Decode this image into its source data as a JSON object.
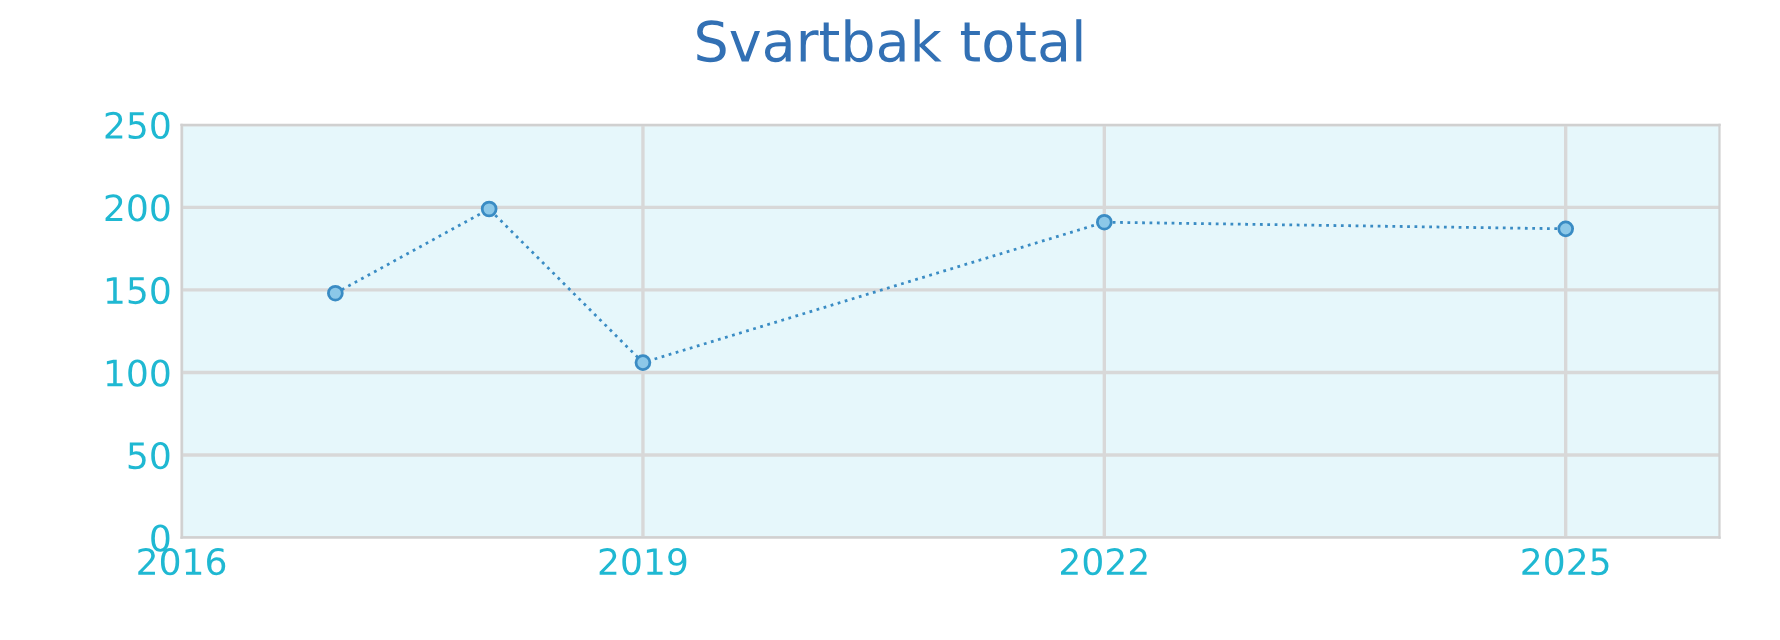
{
  "chart_data": {
    "type": "line",
    "title": "Svartbak total",
    "x": [
      2017,
      2018,
      2019,
      2022,
      2025
    ],
    "series": [
      {
        "color": "#3a8cc4",
        "values": [
          148,
          199,
          106,
          191,
          187
        ]
      }
    ],
    "xlim": [
      2016,
      2026
    ],
    "xticks": [
      2016,
      2019,
      2022,
      2025
    ],
    "ylim": [
      0,
      250
    ],
    "yticks": [
      0,
      50,
      100,
      150,
      200,
      250
    ],
    "grid": true,
    "marker": "circle",
    "line_style": "dotted"
  }
}
